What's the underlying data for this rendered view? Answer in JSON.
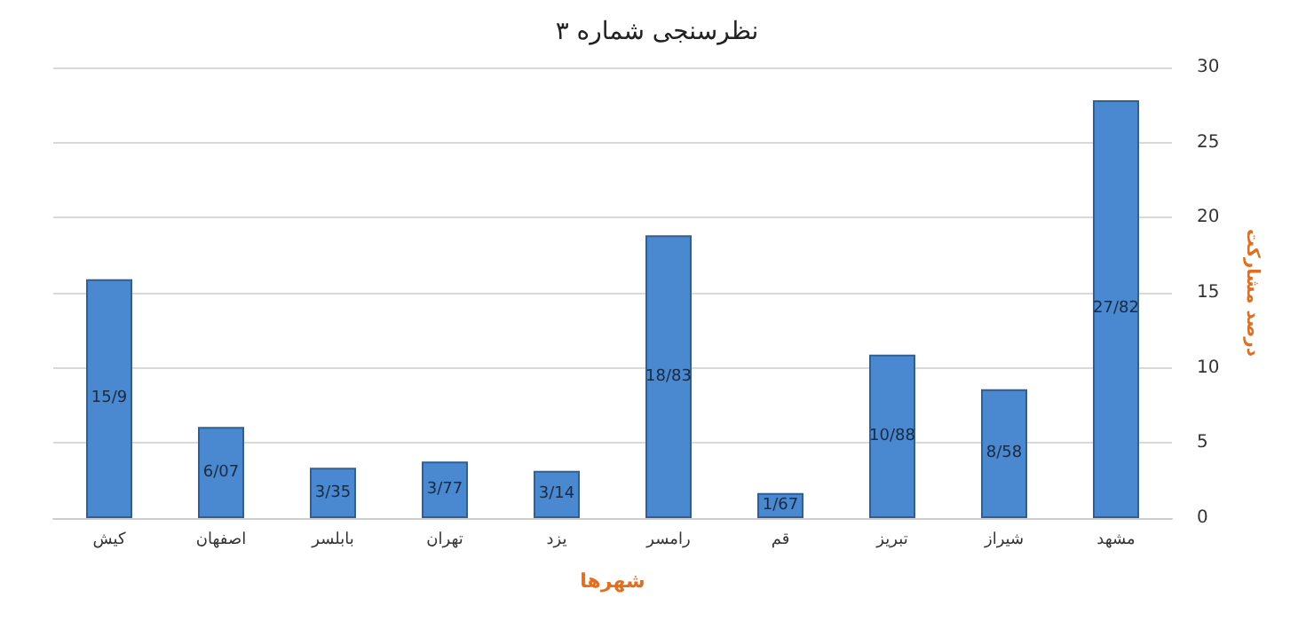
{
  "chart_data": {
    "type": "bar",
    "title": "نظرسنجی شماره ۳",
    "xlabel": "شهرها",
    "ylabel": "درصد مشارکت",
    "categories": [
      "کیش",
      "اصفهان",
      "بابلسر",
      "تهران",
      "یزد",
      "رامسر",
      "قم",
      "تبریز",
      "شیراز",
      "مشهد"
    ],
    "values": [
      15.9,
      6.07,
      3.35,
      3.77,
      3.14,
      18.83,
      1.67,
      10.88,
      8.58,
      27.82
    ],
    "value_labels": [
      "15/9",
      "6/07",
      "3/35",
      "3/77",
      "3/14",
      "18/83",
      "1/67",
      "10/88",
      "8/58",
      "27/82"
    ],
    "color": "#4a89d0",
    "ylim": [
      0,
      30
    ],
    "yticks": [
      0,
      5,
      10,
      15,
      20,
      25,
      30
    ],
    "grid": "y"
  }
}
